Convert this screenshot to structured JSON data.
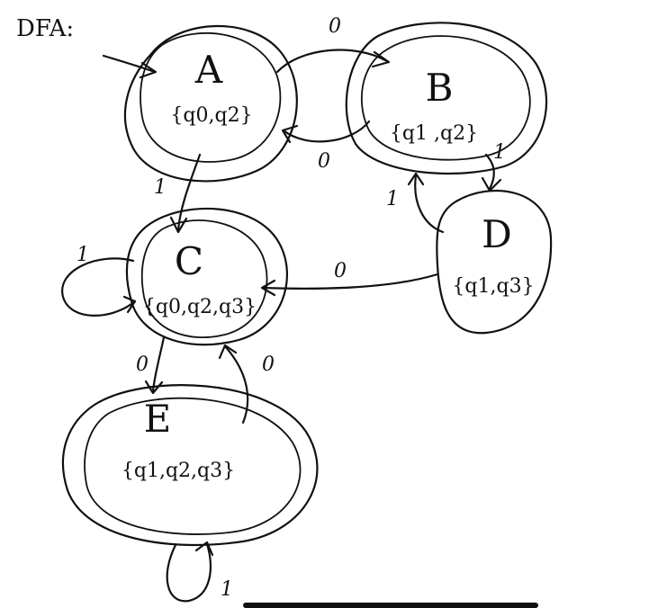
{
  "title": "DFA:",
  "states": [
    {
      "id": "A",
      "name": "A",
      "set": "{q0,q2}",
      "start": true
    },
    {
      "id": "B",
      "name": "B",
      "set": "{q1 ,q2}"
    },
    {
      "id": "C",
      "name": "C",
      "set": "{q0,q2,q3}"
    },
    {
      "id": "D",
      "name": "D",
      "set": "{q1,q3}"
    },
    {
      "id": "E",
      "name": "E",
      "set": "{q1,q2,q3}"
    }
  ],
  "transitions": [
    {
      "from": "A",
      "to": "B",
      "symbol": "0"
    },
    {
      "from": "B",
      "to": "A",
      "symbol": "0"
    },
    {
      "from": "A",
      "to": "C",
      "symbol": "1"
    },
    {
      "from": "B",
      "to": "D",
      "symbol": "1"
    },
    {
      "from": "D",
      "to": "B",
      "symbol": "1"
    },
    {
      "from": "D",
      "to": "C",
      "symbol": "0"
    },
    {
      "from": "C",
      "to": "C",
      "symbol": "1"
    },
    {
      "from": "C",
      "to": "E",
      "symbol": "0"
    },
    {
      "from": "E",
      "to": "C",
      "symbol": "0"
    },
    {
      "from": "E",
      "to": "E",
      "symbol": "1"
    }
  ]
}
